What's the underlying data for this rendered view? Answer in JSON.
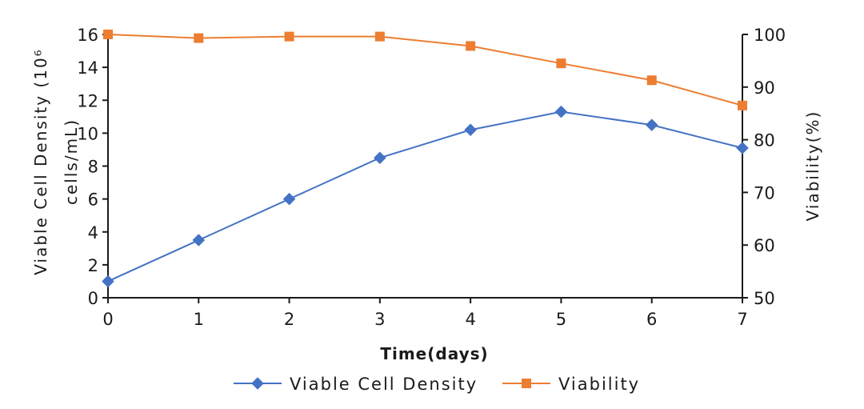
{
  "chart_data": {
    "type": "line",
    "x": [
      0,
      1,
      2,
      3,
      4,
      5,
      6,
      7
    ],
    "series": [
      {
        "name": "Viable Cell Density",
        "axis": "left",
        "color": "#4472C4",
        "marker": "diamond",
        "values": [
          1.0,
          3.5,
          6.0,
          8.5,
          10.2,
          11.3,
          10.5,
          9.1
        ]
      },
      {
        "name": "Viability",
        "axis": "right",
        "color": "#ED7D31",
        "marker": "square",
        "values": [
          100,
          99.3,
          99.6,
          99.6,
          97.8,
          94.5,
          91.3,
          86.5
        ]
      }
    ],
    "xlabel": "Time(days)",
    "ylabel_left_line1": "Viable Cell Density (10⁶",
    "ylabel_left_line2": "cells/mL)",
    "ylabel_right": "Viability(%)",
    "xlim": [
      0,
      7
    ],
    "ylim_left": [
      0,
      16
    ],
    "ylim_right": [
      50,
      100
    ],
    "xticks": [
      "0",
      "1",
      "2",
      "3",
      "4",
      "5",
      "6",
      "7"
    ],
    "yticks_left": [
      "0",
      "2",
      "4",
      "6",
      "8",
      "10",
      "12",
      "14",
      "16"
    ],
    "yticks_right": [
      "50",
      "60",
      "70",
      "80",
      "90",
      "100"
    ],
    "grid": false,
    "legend_position": "bottom-center"
  }
}
